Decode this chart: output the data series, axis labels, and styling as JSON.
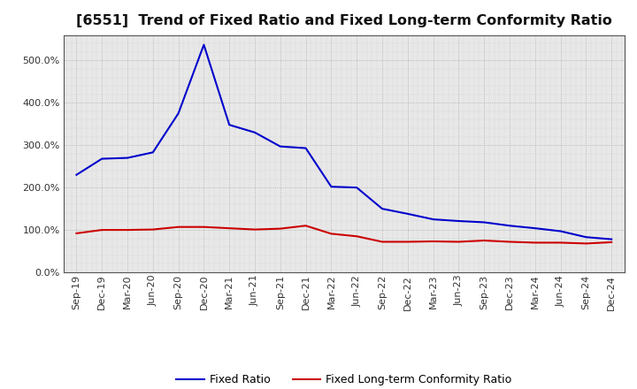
{
  "title": "[6551]  Trend of Fixed Ratio and Fixed Long-term Conformity Ratio",
  "title_fontsize": 11.5,
  "background_color": "#ffffff",
  "plot_bg_color": "#e8e8e8",
  "grid_color": "#999999",
  "x_labels": [
    "Sep-19",
    "Dec-19",
    "Mar-20",
    "Jun-20",
    "Sep-20",
    "Dec-20",
    "Mar-21",
    "Jun-21",
    "Sep-21",
    "Dec-21",
    "Mar-22",
    "Jun-22",
    "Sep-22",
    "Dec-22",
    "Mar-23",
    "Jun-23",
    "Sep-23",
    "Dec-23",
    "Mar-24",
    "Jun-24",
    "Sep-24",
    "Dec-24"
  ],
  "fixed_ratio": [
    230,
    268,
    270,
    283,
    375,
    537,
    348,
    330,
    297,
    293,
    202,
    200,
    150,
    138,
    125,
    121,
    118,
    110,
    104,
    97,
    83,
    78
  ],
  "fixed_lt_ratio": [
    92,
    100,
    100,
    101,
    107,
    107,
    104,
    101,
    103,
    110,
    91,
    85,
    72,
    72,
    73,
    72,
    75,
    72,
    70,
    70,
    68,
    71
  ],
  "ylim": [
    0,
    560
  ],
  "yticks": [
    0,
    100,
    200,
    300,
    400,
    500
  ],
  "line_color_fixed": "#0000cc",
  "line_color_lt": "#cc0000",
  "line_width": 1.5,
  "legend_labels": [
    "Fixed Ratio",
    "Fixed Long-term Conformity Ratio"
  ],
  "tick_fontsize": 8,
  "ylabel_fontsize": 9
}
